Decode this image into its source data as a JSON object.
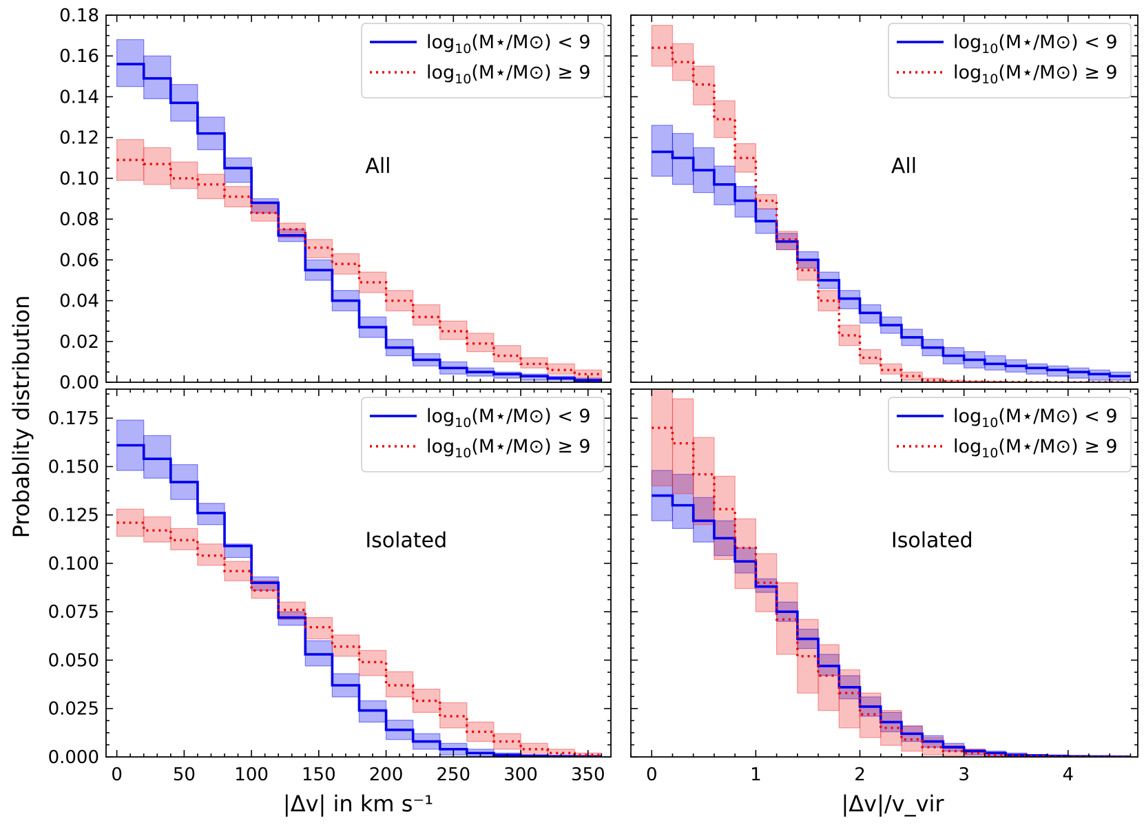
{
  "figure": {
    "ylabel": "Probablity distribution",
    "xlabel_left": "|Δv| in km s⁻¹",
    "xlabel_right": "|Δv|/v_vir"
  },
  "chart_data": [
    {
      "type": "line",
      "panel": "top-left",
      "label": "All",
      "xlim": [
        -8,
        367
      ],
      "ylim": [
        0,
        0.18
      ],
      "xticks": [
        0,
        50,
        100,
        150,
        200,
        250,
        300,
        350
      ],
      "xtick_labels": false,
      "yticks": [
        0,
        0.02,
        0.04,
        0.06,
        0.08,
        0.1,
        0.12,
        0.14,
        0.16,
        0.18
      ],
      "ytick_labels": [
        "0.00",
        "0.02",
        "0.04",
        "0.06",
        "0.08",
        "0.10",
        "0.12",
        "0.14",
        "0.16",
        "0.18"
      ],
      "legend_position": "top-right",
      "x_edges": [
        0,
        20,
        40,
        60,
        80,
        100,
        120,
        140,
        160,
        180,
        200,
        220,
        240,
        260,
        280,
        300,
        320,
        340,
        360
      ],
      "series": [
        {
          "name": "log10(M*/Msun) < 9",
          "legend_main": "log",
          "legend_sub": "10",
          "legend_rest": "(M⋆/M⊙) < 9",
          "style": "solid",
          "color": "#0000ee",
          "fill": "#0000ee",
          "values": [
            0.156,
            0.149,
            0.137,
            0.122,
            0.105,
            0.088,
            0.072,
            0.055,
            0.04,
            0.027,
            0.017,
            0.011,
            0.007,
            0.005,
            0.004,
            0.003,
            0.002,
            0.001
          ],
          "lower": [
            0.145,
            0.139,
            0.128,
            0.114,
            0.098,
            0.083,
            0.069,
            0.05,
            0.035,
            0.022,
            0.013,
            0.008,
            0.004,
            0.003,
            0.002,
            0.001,
            0.001,
            0.0
          ],
          "upper": [
            0.168,
            0.16,
            0.146,
            0.13,
            0.11,
            0.09,
            0.075,
            0.06,
            0.045,
            0.032,
            0.021,
            0.014,
            0.01,
            0.007,
            0.005,
            0.004,
            0.003,
            0.002
          ]
        },
        {
          "name": "log10(M*/Msun) >= 9",
          "legend_main": "log",
          "legend_sub": "10",
          "legend_rest": "(M⋆/M⊙) ≥ 9",
          "style": "dotted",
          "color": "#ee0000",
          "fill": "#ee3030",
          "values": [
            0.109,
            0.107,
            0.1,
            0.097,
            0.091,
            0.083,
            0.075,
            0.066,
            0.058,
            0.049,
            0.04,
            0.032,
            0.025,
            0.019,
            0.013,
            0.009,
            0.006,
            0.004
          ],
          "lower": [
            0.099,
            0.097,
            0.095,
            0.09,
            0.086,
            0.079,
            0.071,
            0.061,
            0.053,
            0.044,
            0.035,
            0.028,
            0.021,
            0.015,
            0.01,
            0.007,
            0.004,
            0.002
          ],
          "upper": [
            0.119,
            0.115,
            0.108,
            0.102,
            0.096,
            0.088,
            0.078,
            0.07,
            0.063,
            0.054,
            0.045,
            0.038,
            0.03,
            0.024,
            0.018,
            0.012,
            0.009,
            0.006
          ]
        }
      ]
    },
    {
      "type": "line",
      "panel": "top-right",
      "label": "All",
      "xlim": [
        -0.2,
        4.67
      ],
      "ylim": [
        0,
        0.18
      ],
      "xticks": [
        0,
        1,
        2,
        3,
        4
      ],
      "xtick_labels": false,
      "yticks": [
        0,
        0.02,
        0.04,
        0.06,
        0.08,
        0.1,
        0.12,
        0.14,
        0.16,
        0.18
      ],
      "ytick_labels": false,
      "legend_position": "top-right",
      "x_edges": [
        0,
        0.2,
        0.4,
        0.6,
        0.8,
        1.0,
        1.2,
        1.4,
        1.6,
        1.8,
        2.0,
        2.2,
        2.4,
        2.6,
        2.8,
        3.0,
        3.2,
        3.4,
        3.6,
        3.8,
        4.0,
        4.2,
        4.4,
        4.6
      ],
      "series": [
        {
          "name": "log10(M*/Msun) < 9",
          "legend_main": "log",
          "legend_sub": "10",
          "legend_rest": "(M⋆/M⊙) < 9",
          "style": "solid",
          "color": "#0000ee",
          "fill": "#0000ee",
          "values": [
            0.113,
            0.11,
            0.104,
            0.097,
            0.089,
            0.079,
            0.069,
            0.06,
            0.05,
            0.041,
            0.034,
            0.028,
            0.022,
            0.017,
            0.013,
            0.011,
            0.009,
            0.008,
            0.007,
            0.006,
            0.005,
            0.004,
            0.003
          ],
          "lower": [
            0.101,
            0.097,
            0.093,
            0.087,
            0.081,
            0.073,
            0.065,
            0.056,
            0.046,
            0.036,
            0.029,
            0.024,
            0.018,
            0.013,
            0.009,
            0.007,
            0.006,
            0.005,
            0.004,
            0.003,
            0.002,
            0.001,
            0.001
          ],
          "upper": [
            0.126,
            0.122,
            0.115,
            0.106,
            0.096,
            0.085,
            0.073,
            0.064,
            0.054,
            0.045,
            0.038,
            0.032,
            0.026,
            0.021,
            0.017,
            0.015,
            0.013,
            0.011,
            0.009,
            0.008,
            0.007,
            0.006,
            0.005
          ]
        },
        {
          "name": "log10(M*/Msun) >= 9",
          "legend_main": "log",
          "legend_sub": "10",
          "legend_rest": "(M⋆/M⊙) ≥ 9",
          "style": "dotted",
          "color": "#ee0000",
          "fill": "#ee3030",
          "values": [
            0.164,
            0.157,
            0.146,
            0.129,
            0.11,
            0.089,
            0.07,
            0.055,
            0.04,
            0.023,
            0.012,
            0.006,
            0.003,
            0.001,
            0.0005,
            0.0003,
            0.0002,
            0.0001,
            0.0,
            0.0,
            0.0,
            0.0,
            0.0
          ],
          "lower": [
            0.155,
            0.148,
            0.136,
            0.12,
            0.103,
            0.085,
            0.065,
            0.05,
            0.035,
            0.018,
            0.009,
            0.004,
            0.001,
            0.0,
            0.0,
            0.0,
            0.0,
            0.0,
            0.0,
            0.0,
            0.0,
            0.0,
            0.0
          ],
          "upper": [
            0.175,
            0.166,
            0.155,
            0.138,
            0.117,
            0.092,
            0.074,
            0.06,
            0.045,
            0.028,
            0.016,
            0.009,
            0.005,
            0.002,
            0.001,
            0.0006,
            0.0004,
            0.0002,
            0.0,
            0.0,
            0.0,
            0.0,
            0.0
          ]
        }
      ]
    },
    {
      "type": "line",
      "panel": "bottom-left",
      "label": "Isolated",
      "xlim": [
        -8,
        367
      ],
      "ylim": [
        0,
        0.19
      ],
      "xticks": [
        0,
        50,
        100,
        150,
        200,
        250,
        300,
        350
      ],
      "xtick_labels": [
        "0",
        "50",
        "100",
        "150",
        "200",
        "250",
        "300",
        "350"
      ],
      "yticks": [
        0,
        0.025,
        0.05,
        0.075,
        0.1,
        0.125,
        0.15,
        0.175
      ],
      "ytick_labels": [
        "0.000",
        "0.025",
        "0.050",
        "0.075",
        "0.100",
        "0.125",
        "0.150",
        "0.175"
      ],
      "legend_position": "top-right",
      "x_edges": [
        0,
        20,
        40,
        60,
        80,
        100,
        120,
        140,
        160,
        180,
        200,
        220,
        240,
        260,
        280,
        300,
        320,
        340,
        360
      ],
      "series": [
        {
          "name": "log10(M*/Msun) < 9",
          "legend_main": "log",
          "legend_sub": "10",
          "legend_rest": "(M⋆/M⊙) < 9",
          "style": "solid",
          "color": "#0000ee",
          "fill": "#0000ee",
          "values": [
            0.161,
            0.154,
            0.142,
            0.126,
            0.109,
            0.09,
            0.072,
            0.053,
            0.037,
            0.024,
            0.014,
            0.008,
            0.004,
            0.002,
            0.001,
            0.0005,
            0.0003,
            0.0002
          ],
          "lower": [
            0.148,
            0.144,
            0.133,
            0.12,
            0.103,
            0.086,
            0.068,
            0.047,
            0.031,
            0.018,
            0.009,
            0.004,
            0.001,
            0.0005,
            0.0,
            0.0,
            0.0,
            0.0
          ],
          "upper": [
            0.174,
            0.166,
            0.151,
            0.131,
            0.11,
            0.093,
            0.075,
            0.06,
            0.043,
            0.029,
            0.019,
            0.012,
            0.007,
            0.004,
            0.002,
            0.001,
            0.0006,
            0.0004
          ]
        },
        {
          "name": "log10(M*/Msun) >= 9",
          "legend_main": "log",
          "legend_sub": "10",
          "legend_rest": "(M⋆/M⊙) ≥ 9",
          "style": "dotted",
          "color": "#ee0000",
          "fill": "#ee3030",
          "values": [
            0.121,
            0.117,
            0.112,
            0.104,
            0.096,
            0.086,
            0.076,
            0.067,
            0.057,
            0.049,
            0.037,
            0.029,
            0.021,
            0.013,
            0.008,
            0.004,
            0.002,
            0.001
          ],
          "lower": [
            0.114,
            0.111,
            0.107,
            0.099,
            0.091,
            0.082,
            0.071,
            0.061,
            0.052,
            0.042,
            0.031,
            0.023,
            0.015,
            0.008,
            0.004,
            0.001,
            0.0005,
            0.0
          ],
          "upper": [
            0.128,
            0.124,
            0.118,
            0.11,
            0.101,
            0.091,
            0.08,
            0.072,
            0.063,
            0.055,
            0.044,
            0.035,
            0.028,
            0.018,
            0.012,
            0.007,
            0.004,
            0.002
          ]
        }
      ]
    },
    {
      "type": "line",
      "panel": "bottom-right",
      "label": "Isolated",
      "xlim": [
        -0.2,
        4.67
      ],
      "ylim": [
        0,
        0.19
      ],
      "xticks": [
        0,
        1,
        2,
        3,
        4
      ],
      "xtick_labels": [
        "0",
        "1",
        "2",
        "3",
        "4"
      ],
      "yticks": [
        0,
        0.025,
        0.05,
        0.075,
        0.1,
        0.125,
        0.15,
        0.175
      ],
      "ytick_labels": false,
      "legend_position": "top-right",
      "x_edges": [
        0,
        0.2,
        0.4,
        0.6,
        0.8,
        1.0,
        1.2,
        1.4,
        1.6,
        1.8,
        2.0,
        2.2,
        2.4,
        2.6,
        2.8,
        3.0,
        3.2,
        3.4,
        3.6,
        3.8,
        4.0,
        4.2,
        4.4,
        4.6
      ],
      "series": [
        {
          "name": "log10(M*/Msun) < 9",
          "legend_main": "log",
          "legend_sub": "10",
          "legend_rest": "(M⋆/M⊙) < 9",
          "style": "solid",
          "color": "#0000ee",
          "fill": "#0000ee",
          "values": [
            0.135,
            0.13,
            0.122,
            0.113,
            0.101,
            0.088,
            0.075,
            0.061,
            0.047,
            0.036,
            0.026,
            0.018,
            0.012,
            0.008,
            0.005,
            0.003,
            0.002,
            0.001,
            0.0008,
            0.0005,
            0.0003,
            0.0002,
            0.0001
          ],
          "lower": [
            0.122,
            0.118,
            0.111,
            0.104,
            0.095,
            0.085,
            0.07,
            0.056,
            0.042,
            0.03,
            0.021,
            0.013,
            0.008,
            0.005,
            0.003,
            0.001,
            0.0005,
            0.0,
            0.0,
            0.0,
            0.0,
            0.0,
            0.0
          ],
          "upper": [
            0.148,
            0.146,
            0.134,
            0.122,
            0.108,
            0.092,
            0.08,
            0.066,
            0.053,
            0.042,
            0.031,
            0.023,
            0.016,
            0.011,
            0.007,
            0.004,
            0.003,
            0.002,
            0.0012,
            0.0008,
            0.0006,
            0.0004,
            0.0002
          ]
        },
        {
          "name": "log10(M*/Msun) >= 9",
          "legend_main": "log",
          "legend_sub": "10",
          "legend_rest": "(M⋆/M⊙) ≥ 9",
          "style": "dotted",
          "color": "#ee0000",
          "fill": "#ee3030",
          "values": [
            0.17,
            0.162,
            0.146,
            0.128,
            0.108,
            0.09,
            0.071,
            0.052,
            0.042,
            0.033,
            0.022,
            0.015,
            0.009,
            0.005,
            0.003,
            0.002,
            0.001,
            0.0006,
            0.0004,
            0.0002,
            0.0001,
            0.0,
            0.0
          ],
          "lower": [
            0.14,
            0.136,
            0.12,
            0.102,
            0.087,
            0.075,
            0.053,
            0.033,
            0.024,
            0.015,
            0.01,
            0.006,
            0.003,
            0.001,
            0.0005,
            0.0,
            0.0,
            0.0,
            0.0,
            0.0,
            0.0,
            0.0,
            0.0
          ],
          "upper": [
            0.19,
            0.185,
            0.165,
            0.145,
            0.123,
            0.105,
            0.09,
            0.071,
            0.058,
            0.045,
            0.033,
            0.024,
            0.016,
            0.01,
            0.006,
            0.004,
            0.002,
            0.001,
            0.0008,
            0.0005,
            0.0002,
            0.0001,
            0.0
          ]
        }
      ]
    }
  ]
}
